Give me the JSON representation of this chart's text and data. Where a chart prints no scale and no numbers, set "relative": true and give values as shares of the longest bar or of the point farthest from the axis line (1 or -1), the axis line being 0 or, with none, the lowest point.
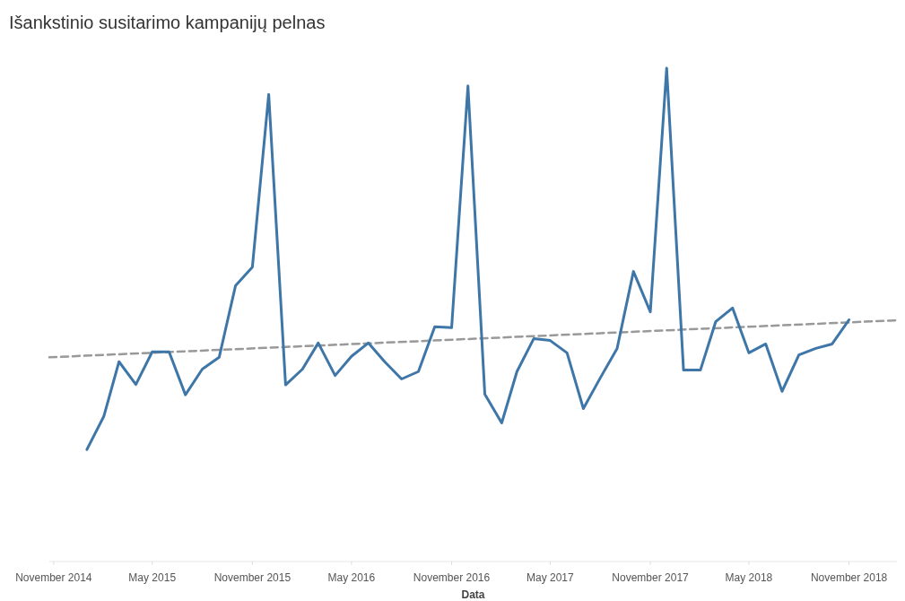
{
  "chart_data": {
    "type": "line",
    "title": "Išankstinio susitarimo kampanijų pelnas",
    "xlabel": "Data",
    "relative": true,
    "x": [
      "2015-01",
      "2015-02",
      "2015-03",
      "2015-04",
      "2015-05",
      "2015-06",
      "2015-07",
      "2015-08",
      "2015-09",
      "2015-10",
      "2015-11",
      "2015-12",
      "2016-01",
      "2016-02",
      "2016-03",
      "2016-04",
      "2016-05",
      "2016-06",
      "2016-07",
      "2016-08",
      "2016-09",
      "2016-10",
      "2016-11",
      "2016-12",
      "2017-01",
      "2017-02",
      "2017-03",
      "2017-04",
      "2017-05",
      "2017-06",
      "2017-07",
      "2017-08",
      "2017-09",
      "2017-10",
      "2017-11",
      "2017-12",
      "2018-01",
      "2018-02",
      "2018-03",
      "2018-04",
      "2018-05",
      "2018-06",
      "2018-07",
      "2018-08",
      "2018-09",
      "2018-10",
      "2018-11"
    ],
    "xlim": [
      "2014-10-24",
      "2019-01-28"
    ],
    "xticks": [
      {
        "value": "2014-11",
        "label": "November 2014"
      },
      {
        "value": "2015-05",
        "label": "May 2015"
      },
      {
        "value": "2015-11",
        "label": "November 2015"
      },
      {
        "value": "2016-05",
        "label": "May 2016"
      },
      {
        "value": "2016-11",
        "label": "November 2016"
      },
      {
        "value": "2017-05",
        "label": "May 2017"
      },
      {
        "value": "2017-11",
        "label": "November 2017"
      },
      {
        "value": "2018-05",
        "label": "May 2018"
      },
      {
        "value": "2018-11",
        "label": "November 2018"
      }
    ],
    "series": [
      {
        "color": "#3e76a8",
        "line_style": "solid",
        "values": [
          0.227,
          0.294,
          0.405,
          0.359,
          0.425,
          0.425,
          0.338,
          0.39,
          0.414,
          0.559,
          0.597,
          0.947,
          0.358,
          0.39,
          0.443,
          0.377,
          0.416,
          0.443,
          0.405,
          0.37,
          0.385,
          0.476,
          0.474,
          0.964,
          0.339,
          0.281,
          0.385,
          0.452,
          0.448,
          0.423,
          0.31,
          0.372,
          0.432,
          0.588,
          0.506,
          1,
          0.388,
          0.388,
          0.486,
          0.514,
          0.423,
          0.441,
          0.345,
          0.419,
          0.432,
          0.441,
          0.49
        ]
      },
      {
        "type": "line",
        "color": "#999999",
        "line_style": "dashed",
        "x": [
          "2014-10-24",
          "2019-01-28"
        ],
        "values": [
          0.414,
          0.489
        ]
      }
    ]
  }
}
